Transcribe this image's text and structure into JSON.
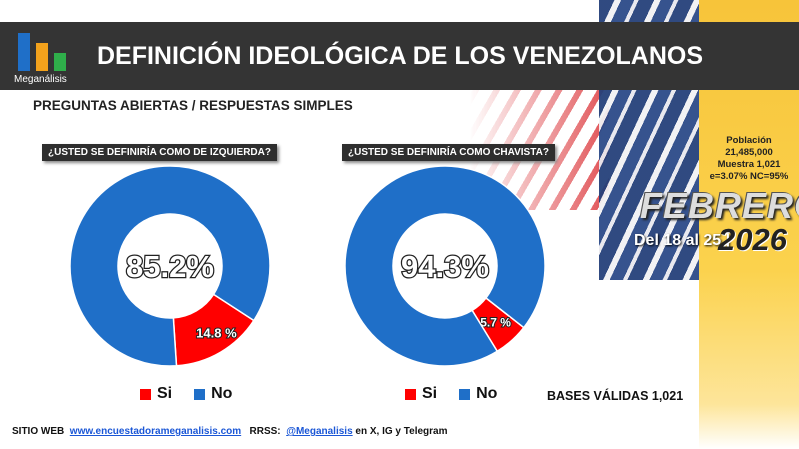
{
  "header": {
    "title": "DEFINICIÓN IDEOLÓGICA DE LOS VENEZOLANOS",
    "logo_text": "Meganálisis"
  },
  "subtitle": "PREGUNTAS  ABIERTAS / RESPUESTAS SIMPLES",
  "colors": {
    "si": "#ff0000",
    "no": "#1f6fc8",
    "header": "#343434"
  },
  "chart_data": [
    {
      "type": "pie",
      "title": "¿USTED SE DEFINIRÍA COMO DE IZQUIERDA?",
      "categories": [
        "Si",
        "No"
      ],
      "values": [
        14.8,
        85.2
      ],
      "labels": [
        "14.8 %",
        "85.2%"
      ]
    },
    {
      "type": "pie",
      "title": "¿USTED SE DEFINIRÍA COMO CHAVISTA?",
      "categories": [
        "Si",
        "No"
      ],
      "values": [
        5.7,
        94.3
      ],
      "labels": [
        "5.7 %",
        "94.3%"
      ]
    }
  ],
  "legend": {
    "si": "Si",
    "no": "No"
  },
  "info": {
    "l1": "Población",
    "l2": "21,485,000",
    "l3": "Muestra 1,021",
    "l4": "e=3.07%  NC=95%"
  },
  "date": {
    "month": "FEBRERO",
    "range": "Del 18 al 25 |",
    "year": "2026"
  },
  "bases": "BASES VÁLIDAS 1,021",
  "footer": {
    "web_label": "SITIO WEB",
    "web_link": "www.encuestadorameganalisis.com",
    "rrss_label": "RRSS:",
    "handle": "@Meganalisis",
    "rest": "en X, IG y Telegram"
  }
}
